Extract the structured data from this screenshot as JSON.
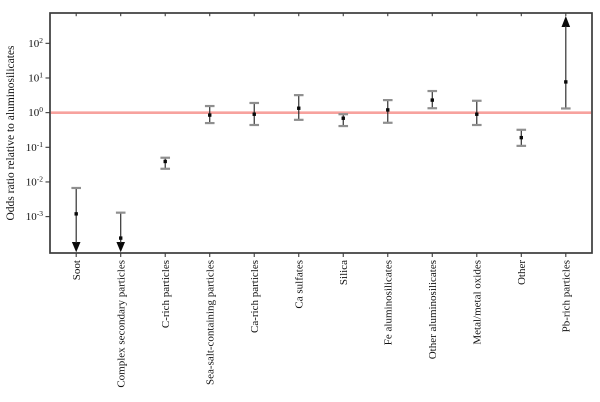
{
  "chart_data": {
    "type": "scatter",
    "title": "",
    "xlabel": "",
    "ylabel": "Odds ratio relative to aluminosilicates",
    "yscale": "log",
    "ylim_exp": [
      -4.05,
      2.875
    ],
    "yticks_exp": [
      2,
      1,
      0,
      -1,
      -2,
      -3
    ],
    "grid": false,
    "legend": "none",
    "reference_line": {
      "value": 1
    },
    "categories": [
      "Soot",
      "Complex secondary particles",
      "C-rich particles",
      "Sea-salt-containing particles",
      "Ca-rich particles",
      "Ca sulfates",
      "Silica",
      "Fe aluminosilicates",
      "Other aluminosilicates",
      "Metal/metal oxides",
      "Other",
      "Pb-rich particles"
    ],
    "points": [
      {
        "label": "Soot",
        "value": 0.0012,
        "lo": null,
        "hi": 0.0067,
        "arrow": "down"
      },
      {
        "label": "Complex secondary particles",
        "value": 0.00024,
        "lo": null,
        "hi": 0.0013,
        "arrow": "down"
      },
      {
        "label": "C-rich particles",
        "value": 0.039,
        "lo": 0.024,
        "hi": 0.05,
        "arrow": null
      },
      {
        "label": "Sea-salt-containing particles",
        "value": 0.85,
        "lo": 0.5,
        "hi": 1.55,
        "arrow": null
      },
      {
        "label": "Ca-rich particles",
        "value": 0.9,
        "lo": 0.44,
        "hi": 1.9,
        "arrow": null
      },
      {
        "label": "Ca sulfates",
        "value": 1.34,
        "lo": 0.62,
        "hi": 3.2,
        "arrow": null
      },
      {
        "label": "Silica",
        "value": 0.69,
        "lo": 0.41,
        "hi": 0.9,
        "arrow": null
      },
      {
        "label": "Fe aluminosilicates",
        "value": 1.2,
        "lo": 0.51,
        "hi": 2.3,
        "arrow": null
      },
      {
        "label": "Other aluminosilicates",
        "value": 2.3,
        "lo": 1.34,
        "hi": 4.2,
        "arrow": null
      },
      {
        "label": "Metal/metal oxides",
        "value": 0.9,
        "lo": 0.44,
        "hi": 2.2,
        "arrow": null
      },
      {
        "label": "Other",
        "value": 0.19,
        "lo": 0.11,
        "hi": 0.32,
        "arrow": null
      },
      {
        "label": "Pb-rich particles",
        "value": 7.7,
        "lo": 1.32,
        "hi": null,
        "arrow": "up"
      }
    ]
  },
  "colors": {
    "reference_line": "#f7a29e",
    "plot_border": "#3b3b3b",
    "error_bar_line": "#2f2f2f",
    "error_bar_cap": "#8f8f8f",
    "marker": "#0a0a0a",
    "text": "#111111",
    "background": "#ffffff"
  }
}
